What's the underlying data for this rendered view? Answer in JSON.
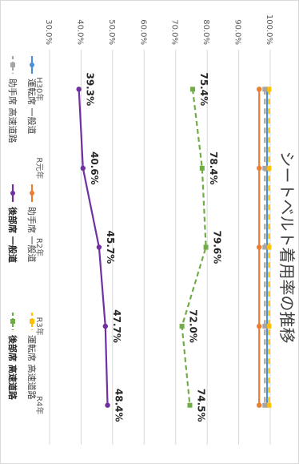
{
  "chart_data": {
    "type": "line",
    "title": "シートベルト着用率の推移",
    "categories": [
      "H30年",
      "R元年",
      "R2年",
      "R3年",
      "R4年"
    ],
    "ylim": [
      30,
      100
    ],
    "yticks": [
      "30.0%",
      "40.0%",
      "50.0%",
      "60.0%",
      "70.0%",
      "80.0%",
      "90.0%",
      "100.0%"
    ],
    "grid": true,
    "legend_position": "bottom",
    "series": [
      {
        "name": "運転席 一般道",
        "values": [
          99.0,
          99.0,
          99.0,
          99.0,
          99.0
        ],
        "color": "#4a90d9",
        "dash": "",
        "marker": "circle",
        "bold": false
      },
      {
        "name": "助手席 一般道",
        "values": [
          96.5,
          96.5,
          96.5,
          96.5,
          96.5
        ],
        "color": "#ed7d31",
        "dash": "",
        "marker": "circle",
        "bold": false
      },
      {
        "name": "運転席 高速道路",
        "values": [
          99.6,
          99.6,
          99.6,
          99.6,
          99.6
        ],
        "color": "#ffc000",
        "dash": "7,5",
        "marker": "square",
        "bold": false
      },
      {
        "name": "助手席 高速道路",
        "values": [
          98.3,
          98.3,
          98.3,
          98.3,
          98.3
        ],
        "color": "#a5a5a5",
        "dash": "7,5",
        "marker": "square",
        "bold": false
      },
      {
        "name": "後部席 一般道",
        "values": [
          39.3,
          40.6,
          45.7,
          47.7,
          48.4
        ],
        "color": "#7030a0",
        "dash": "",
        "marker": "circle",
        "bold": true,
        "labels": [
          "39.3%",
          "40.6%",
          "45.7%",
          "47.7%",
          "48.4%"
        ]
      },
      {
        "name": "後部席 高速道路",
        "values": [
          75.4,
          78.4,
          79.6,
          72.0,
          74.5
        ],
        "color": "#70ad47",
        "dash": "6,4",
        "marker": "square",
        "bold": true,
        "labels": [
          "75.4%",
          "78.4%",
          "79.6%",
          "72.0%",
          "74.5%"
        ]
      }
    ]
  }
}
